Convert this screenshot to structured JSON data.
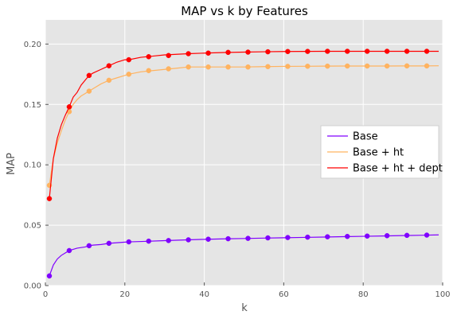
{
  "chart_data": {
    "type": "line",
    "title": "MAP vs k by Features",
    "xlabel": "k",
    "ylabel": "MAP",
    "xlim": [
      0,
      100
    ],
    "ylim": [
      0.0,
      0.22
    ],
    "xticks": [
      0,
      20,
      40,
      60,
      80,
      100
    ],
    "yticks": [
      0.0,
      0.05,
      0.1,
      0.15,
      0.2
    ],
    "xtick_labels": [
      "0",
      "20",
      "40",
      "60",
      "80",
      "100"
    ],
    "ytick_labels": [
      "0.00",
      "0.05",
      "0.10",
      "0.15",
      "0.20"
    ],
    "grid": true,
    "background": "#e5e5e5",
    "legend_position": "center-right",
    "series": [
      {
        "name": "Base",
        "color": "#8000ff",
        "line_k": [
          1,
          2,
          3,
          4,
          5,
          6,
          7,
          8,
          9,
          10,
          11,
          12,
          14,
          16,
          18,
          20,
          21,
          25,
          30,
          35,
          40,
          45,
          50,
          55,
          60,
          65,
          70,
          75,
          80,
          85,
          90,
          95,
          99
        ],
        "line_v": [
          0.008,
          0.017,
          0.022,
          0.025,
          0.027,
          0.029,
          0.03,
          0.031,
          0.0315,
          0.032,
          0.033,
          0.0335,
          0.034,
          0.035,
          0.0355,
          0.036,
          0.0362,
          0.0366,
          0.0372,
          0.0378,
          0.0383,
          0.0387,
          0.039,
          0.0393,
          0.0396,
          0.0399,
          0.0402,
          0.0405,
          0.0408,
          0.0411,
          0.0414,
          0.0417,
          0.042
        ],
        "marker_k": [
          1,
          6,
          11,
          16,
          21,
          26,
          31,
          36,
          41,
          46,
          51,
          56,
          61,
          66,
          71,
          76,
          81,
          86,
          91,
          96
        ],
        "marker_v": [
          0.008,
          0.029,
          0.033,
          0.035,
          0.0362,
          0.0368,
          0.0373,
          0.0379,
          0.0384,
          0.0388,
          0.0391,
          0.0395,
          0.0398,
          0.0401,
          0.0404,
          0.0407,
          0.041,
          0.0413,
          0.0416,
          0.0418
        ]
      },
      {
        "name": "Base + ht",
        "color": "#ffb360",
        "line_k": [
          1,
          2,
          3,
          4,
          5,
          6,
          7,
          8,
          9,
          10,
          11,
          12,
          14,
          16,
          18,
          20,
          21,
          24,
          27,
          30,
          33,
          36,
          40,
          45,
          50,
          55,
          60,
          65,
          70,
          75,
          80,
          85,
          90,
          95,
          99
        ],
        "line_v": [
          0.083,
          0.105,
          0.118,
          0.128,
          0.137,
          0.144,
          0.15,
          0.154,
          0.157,
          0.159,
          0.161,
          0.163,
          0.167,
          0.17,
          0.172,
          0.174,
          0.175,
          0.177,
          0.178,
          0.179,
          0.18,
          0.181,
          0.181,
          0.181,
          0.181,
          0.1813,
          0.1815,
          0.1816,
          0.1817,
          0.1818,
          0.1818,
          0.1818,
          0.1819,
          0.1819,
          0.182
        ],
        "marker_k": [
          1,
          6,
          11,
          16,
          21,
          26,
          31,
          36,
          41,
          46,
          51,
          56,
          61,
          66,
          71,
          76,
          81,
          86,
          91,
          96
        ],
        "marker_v": [
          0.083,
          0.144,
          0.161,
          0.17,
          0.175,
          0.178,
          0.1795,
          0.181,
          0.181,
          0.181,
          0.181,
          0.1813,
          0.1815,
          0.1816,
          0.1817,
          0.1818,
          0.1818,
          0.1818,
          0.1819,
          0.1819
        ]
      },
      {
        "name": "Base + ht + dept",
        "color": "#ff0000",
        "line_k": [
          1,
          2,
          3,
          4,
          5,
          6,
          7,
          8,
          9,
          10,
          11,
          12,
          14,
          16,
          18,
          20,
          21,
          24,
          27,
          30,
          33,
          36,
          40,
          45,
          50,
          55,
          60,
          65,
          70,
          75,
          80,
          85,
          90,
          95,
          99
        ],
        "line_v": [
          0.072,
          0.105,
          0.122,
          0.133,
          0.141,
          0.148,
          0.156,
          0.16,
          0.166,
          0.17,
          0.174,
          0.176,
          0.179,
          0.182,
          0.185,
          0.187,
          0.187,
          0.189,
          0.19,
          0.191,
          0.1915,
          0.192,
          0.1925,
          0.193,
          0.1933,
          0.1936,
          0.1938,
          0.1939,
          0.194,
          0.194,
          0.194,
          0.194,
          0.194,
          0.194,
          0.194
        ],
        "marker_k": [
          1,
          6,
          11,
          16,
          21,
          26,
          31,
          36,
          41,
          46,
          51,
          56,
          61,
          66,
          71,
          76,
          81,
          86,
          91,
          96
        ],
        "marker_v": [
          0.072,
          0.148,
          0.174,
          0.182,
          0.187,
          0.1895,
          0.1905,
          0.192,
          0.1925,
          0.1931,
          0.1933,
          0.1936,
          0.1938,
          0.1939,
          0.194,
          0.194,
          0.194,
          0.194,
          0.194,
          0.194
        ]
      }
    ]
  }
}
